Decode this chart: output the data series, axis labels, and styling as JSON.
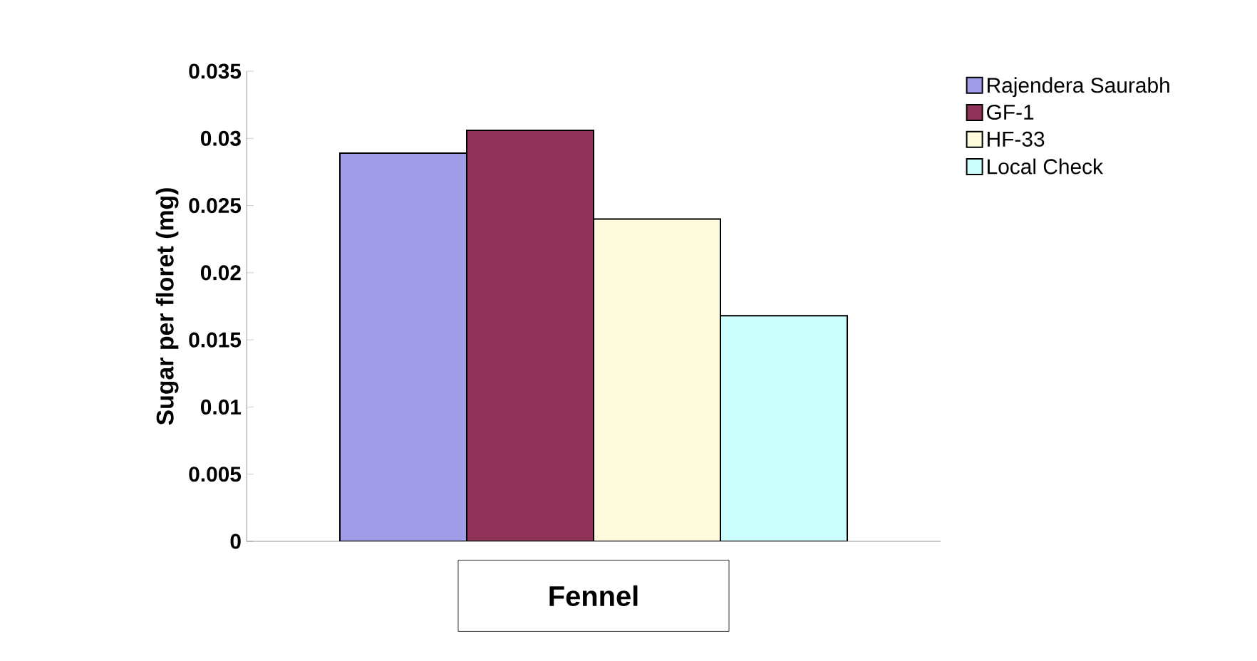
{
  "chart_data": {
    "type": "bar",
    "ylabel": "Sugar per floret (mg)",
    "categories": [
      "Fennel"
    ],
    "series": [
      {
        "name": "Rajendera Saurabh",
        "color": "#a09ce8",
        "values": [
          0.0289
        ]
      },
      {
        "name": "GF-1",
        "color": "#8f3458",
        "values": [
          0.0306
        ]
      },
      {
        "name": "HF-33",
        "color": "#fefbdc",
        "values": [
          0.024
        ]
      },
      {
        "name": "Local Check",
        "color": "#ccfefe",
        "values": [
          0.0168
        ]
      }
    ],
    "ylim": [
      0,
      0.035
    ],
    "yticks": [
      0,
      0.005,
      0.01,
      0.015,
      0.02,
      0.025,
      0.03,
      0.035
    ],
    "grid": false,
    "legend": "top right"
  }
}
